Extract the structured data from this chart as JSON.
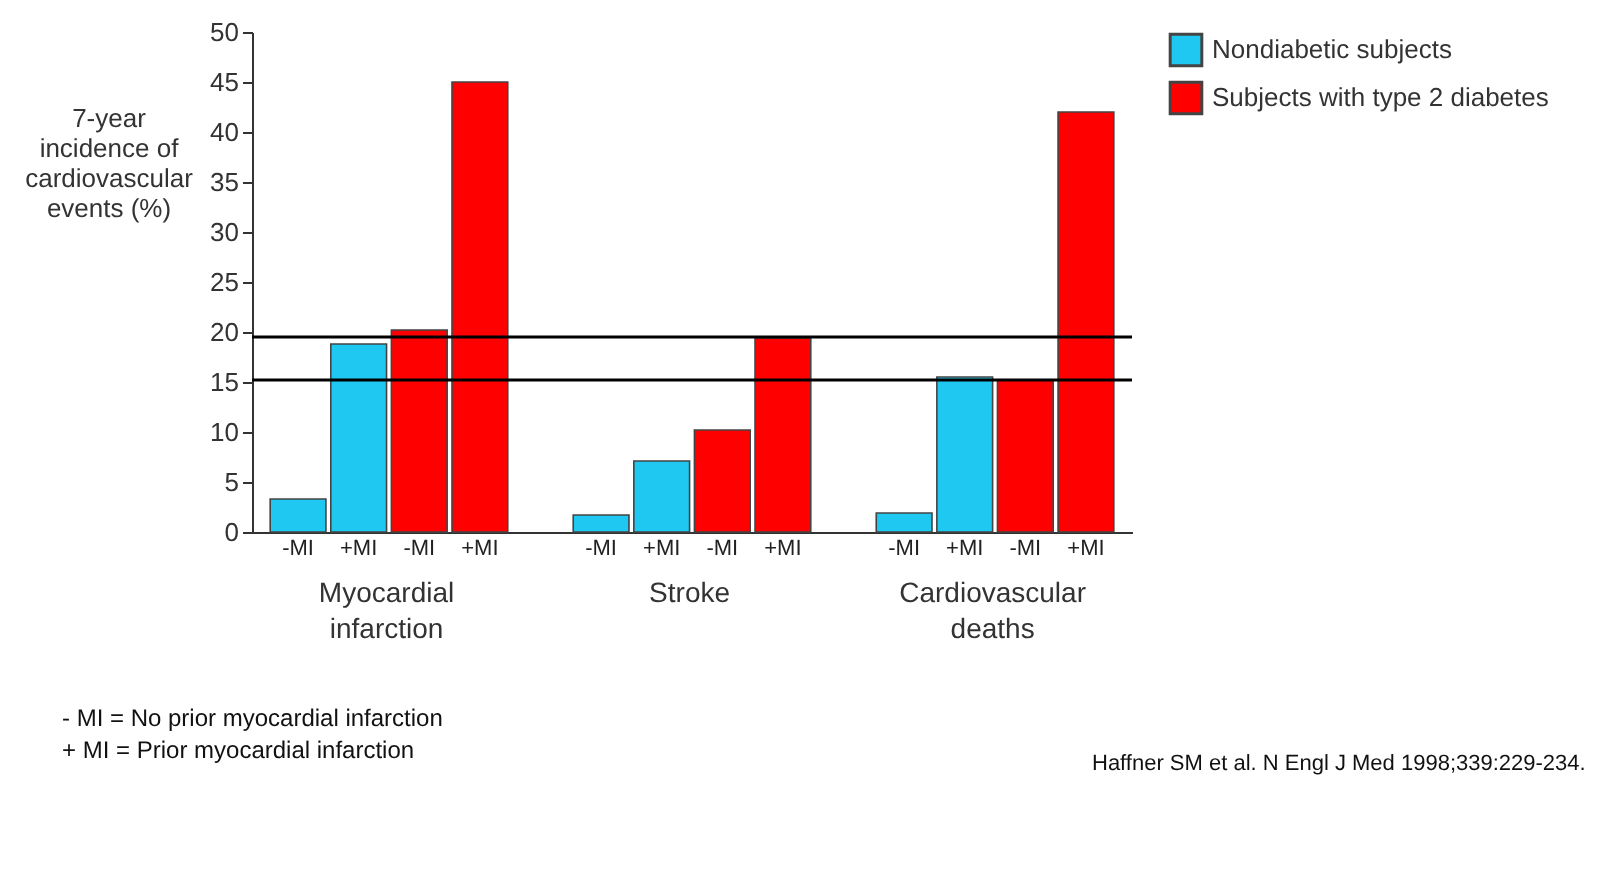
{
  "chart_data": {
    "type": "bar",
    "ylabel": "7-year\nincidence of\ncardiovascular\nevents (%)",
    "categories": [
      "-MI",
      "+MI",
      "-MI",
      "+MI",
      "-MI",
      "+MI",
      "-MI",
      "+MI",
      "-MI",
      "+MI",
      "-MI",
      "+MI"
    ],
    "series": [
      {
        "name": "Nondiabetic subjects",
        "color": "#1ec8f0",
        "values": [
          3.3,
          18.8,
          null,
          null,
          1.7,
          7.1,
          null,
          null,
          1.9,
          15.5,
          null,
          null
        ]
      },
      {
        "name": "Subjects with type 2 diabetes",
        "color": "#ff0000",
        "values": [
          null,
          null,
          20.2,
          45,
          null,
          null,
          10.2,
          19.4,
          null,
          null,
          15.2,
          42
        ]
      }
    ],
    "ylim": [
      0,
      50
    ],
    "yticks": [
      0,
      5,
      10,
      15,
      20,
      25,
      30,
      35,
      40,
      45,
      50
    ],
    "grid": false,
    "legend": "top right",
    "ref_lines": [
      {
        "axis": "y",
        "value": 19.5,
        "color": "#000000"
      },
      {
        "axis": "y",
        "value": 15.2,
        "color": "#000000"
      }
    ],
    "annotations": [
      "Myocardial infarction",
      "Stroke",
      "Cardiovascular deaths",
      "- MI = No prior myocardial infarction",
      "+ MI = Prior myocardial infarction",
      "Haffner SM et al.  N Engl J Med 1998;339:229-234."
    ]
  }
}
